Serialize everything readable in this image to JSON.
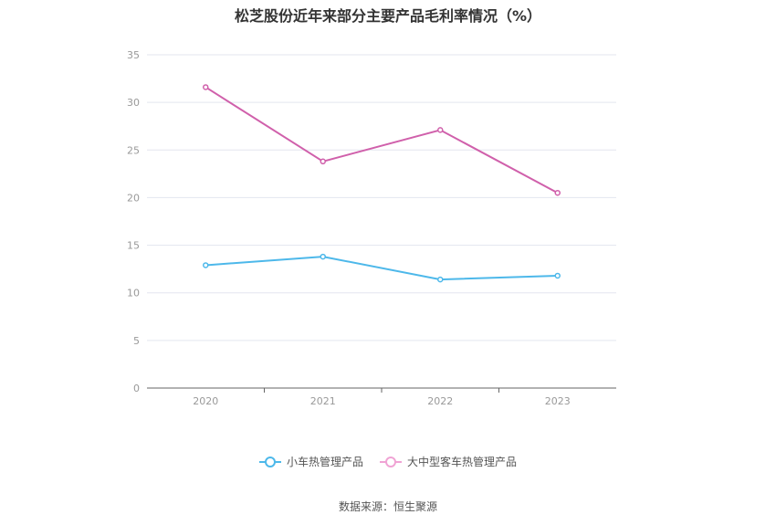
{
  "chart_data": {
    "type": "line",
    "title": "松芝股份近年来部分主要产品毛利率情况（%）",
    "categories": [
      "2020",
      "2021",
      "2022",
      "2023"
    ],
    "ylim": [
      0,
      35
    ],
    "yticks": [
      0,
      5,
      10,
      15,
      20,
      25,
      30,
      35
    ],
    "grid": true,
    "legend_position": "bottom",
    "series": [
      {
        "name": "小车热管理产品",
        "values": [
          12.9,
          13.8,
          11.4,
          11.8
        ],
        "color": "#4db8ea"
      },
      {
        "name": "大中型客车热管理产品",
        "values": [
          31.6,
          23.8,
          27.1,
          20.5
        ],
        "color": "#d060ab"
      }
    ]
  },
  "legend": {
    "items": [
      {
        "label": "小车热管理产品",
        "color": "#4db8ea",
        "ring": "#4db8ea"
      },
      {
        "label": "大中型客车热管理产品",
        "color": "#f0a3d4",
        "ring": "#f0a3d4"
      }
    ]
  },
  "source": "数据来源：恒生聚源"
}
